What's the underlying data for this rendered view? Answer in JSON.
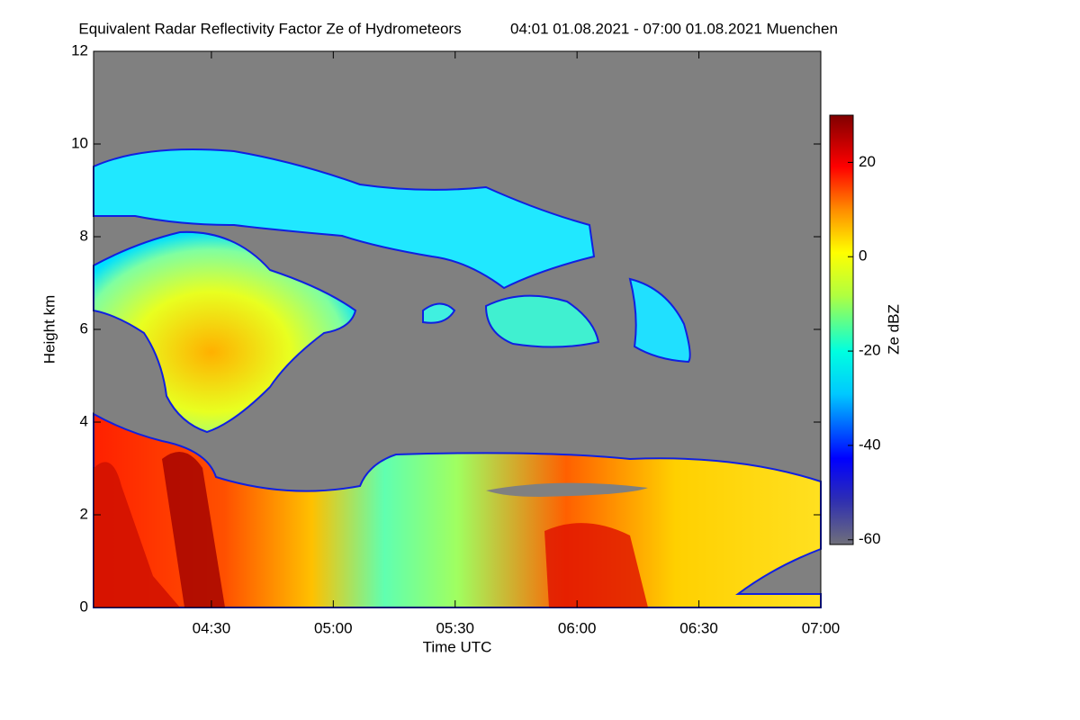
{
  "chart_data": {
    "type": "heatmap",
    "title": "Equivalent Radar Reflectivity Factor Ze of Hydrometeors",
    "subtitle": "04:01 01.08.2021 - 07:00 01.08.2021 Muenchen",
    "x_label": "Time UTC",
    "y_label": "Height km",
    "colorbar_label": "Ze dBZ",
    "xlim": [
      241,
      420
    ],
    "xticks": [
      {
        "value": 270,
        "label": "04:30"
      },
      {
        "value": 300,
        "label": "05:00"
      },
      {
        "value": 330,
        "label": "05:30"
      },
      {
        "value": 360,
        "label": "06:00"
      },
      {
        "value": 390,
        "label": "06:30"
      },
      {
        "value": 420,
        "label": "07:00"
      }
    ],
    "ylim": [
      0,
      12
    ],
    "yticks": [
      0,
      2,
      4,
      6,
      8,
      10,
      12
    ],
    "clim": [
      -61,
      30
    ],
    "cticks": [
      -60,
      -40,
      -20,
      0,
      20
    ],
    "background_color": "#808080"
  }
}
